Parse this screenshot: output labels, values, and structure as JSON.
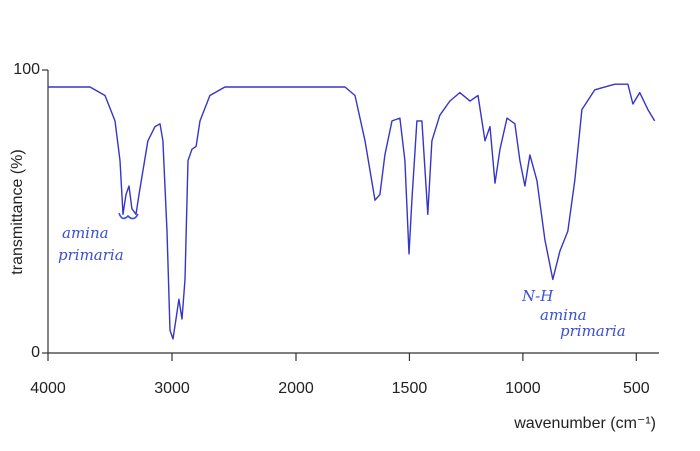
{
  "chart_data": {
    "type": "line",
    "ylabel": "transmittance (%)",
    "xlabel": "wavenumber (cm⁻¹)",
    "xlim": [
      4000,
      400
    ],
    "xscale_break": 2000,
    "xticks": [
      4000,
      3000,
      2000,
      1500,
      1000,
      500
    ],
    "ylim": [
      0,
      100
    ],
    "yticks": [
      0,
      100
    ],
    "color": "#3535c8",
    "annotations": [
      "amina",
      "primaria",
      "N-H",
      "amina",
      "primaria"
    ],
    "x": [
      4000,
      3661,
      3540,
      3460,
      3419,
      3395,
      3371,
      3347,
      3323,
      3290,
      3266,
      3194,
      3137,
      3097,
      3073,
      3040,
      3016,
      2992,
      2968,
      2944,
      2919,
      2895,
      2871,
      2839,
      2806,
      2774,
      2694,
      2573,
      2290,
      2000,
      1784,
      1740,
      1696,
      1652,
      1630,
      1608,
      1577,
      1542,
      1520,
      1502,
      1489,
      1467,
      1445,
      1419,
      1401,
      1366,
      1322,
      1278,
      1233,
      1198,
      1167,
      1145,
      1123,
      1101,
      1070,
      1035,
      1013,
      991,
      969,
      938,
      903,
      868,
      837,
      802,
      771,
      740,
      683,
      595,
      537,
      515,
      485,
      449,
      419
    ],
    "values": [
      94,
      94,
      91,
      82,
      68,
      49,
      56,
      59,
      51,
      49,
      56,
      75,
      80,
      81,
      75,
      43,
      8,
      5,
      12,
      19,
      12,
      26,
      68,
      72,
      73,
      82,
      91,
      94,
      94,
      94,
      94,
      91,
      75,
      54,
      56,
      70,
      82,
      83,
      68,
      35,
      54,
      82,
      82,
      49,
      75,
      84,
      89,
      92,
      89,
      91,
      75,
      80,
      60,
      72,
      83,
      81,
      68,
      59,
      70,
      61,
      40,
      26,
      36,
      43,
      61,
      86,
      93,
      95,
      95,
      88,
      92,
      86,
      82
    ]
  }
}
